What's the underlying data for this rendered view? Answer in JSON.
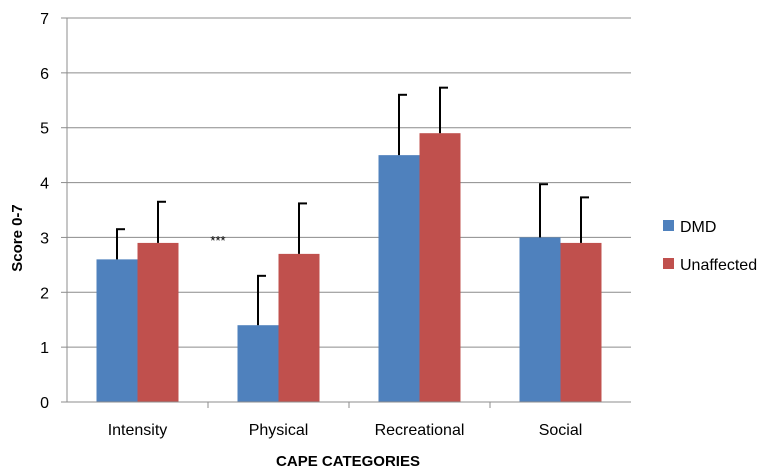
{
  "chart_data": {
    "type": "bar",
    "xlabel": "CAPE CATEGORIES",
    "ylabel": "Score 0-7",
    "ylim": [
      0,
      7
    ],
    "yticks": [
      0,
      1,
      2,
      3,
      4,
      5,
      6,
      7
    ],
    "grid": true,
    "legend_position": "right",
    "categories": [
      "Intensity",
      "Physical",
      "Recreational",
      "Social"
    ],
    "series": [
      {
        "name": "DMD",
        "color": "#4f81bd",
        "values": [
          2.6,
          1.4,
          4.5,
          3.0
        ],
        "error": [
          0.55,
          0.9,
          1.1,
          0.97
        ]
      },
      {
        "name": "Unaffected",
        "color": "#c0504d",
        "values": [
          2.9,
          2.7,
          4.9,
          2.9
        ],
        "error": [
          0.75,
          0.92,
          0.83,
          0.83
        ]
      }
    ],
    "annotations": [
      {
        "text": "***",
        "category": "Physical",
        "series": "DMD"
      }
    ]
  }
}
